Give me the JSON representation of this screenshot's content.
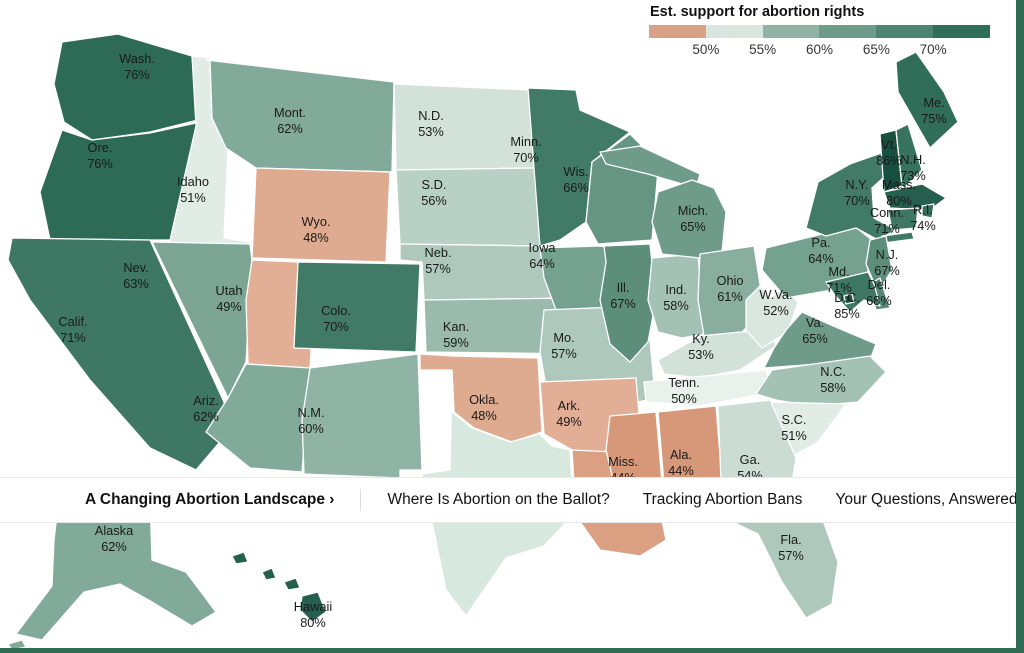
{
  "legend": {
    "title": "Est. support for abortion rights",
    "ticks": [
      "50%",
      "55%",
      "60%",
      "65%",
      "70%"
    ],
    "swatches": [
      "#d9a286",
      "#d9e6df",
      "#8fb3a4",
      "#6f9c8a",
      "#4e8471",
      "#2f6e59"
    ]
  },
  "nav": {
    "items": [
      {
        "label": "A Changing Abortion Landscape ›",
        "active": true
      },
      {
        "label": "Where Is Abortion on the Ballot?",
        "active": false
      },
      {
        "label": "Tracking Abortion Bans",
        "active": false
      },
      {
        "label": "Your Questions, Answered",
        "active": false
      }
    ]
  },
  "decor": {
    "accent_strip_color": "#306b56"
  },
  "chart_data": {
    "type": "choropleth_map",
    "region": "United States",
    "title": "Est. support for abortion rights",
    "unit": "%",
    "legend_range": [
      50,
      70
    ],
    "states": [
      {
        "id": "WA",
        "name": "Wash.",
        "value": 76,
        "fill": "#2d6b57"
      },
      {
        "id": "OR",
        "name": "Ore.",
        "value": 76,
        "fill": "#2d6b57"
      },
      {
        "id": "ID",
        "name": "Idaho",
        "value": 51,
        "fill": "#e1ece6"
      },
      {
        "id": "MT",
        "name": "Mont.",
        "value": 62,
        "fill": "#82aa9a"
      },
      {
        "id": "WY",
        "name": "Wyo.",
        "value": 48,
        "fill": "#dfab90"
      },
      {
        "id": "ND",
        "name": "N.D.",
        "value": 53,
        "fill": "#d2e2d9"
      },
      {
        "id": "SD",
        "name": "S.D.",
        "value": 56,
        "fill": "#b9d1c4"
      },
      {
        "id": "NE",
        "name": "Neb.",
        "value": 57,
        "fill": "#aec9bc"
      },
      {
        "id": "KS",
        "name": "Kan.",
        "value": 59,
        "fill": "#99baac"
      },
      {
        "id": "OK",
        "name": "Okla.",
        "value": 48,
        "fill": "#dfab90"
      },
      {
        "id": "TX",
        "name": "",
        "value": null,
        "fill": "#d7e8de"
      },
      {
        "id": "LA",
        "name": "",
        "value": null,
        "fill": "#dba082"
      },
      {
        "id": "CA",
        "name": "Calif.",
        "value": 71,
        "fill": "#3e7864"
      },
      {
        "id": "NV",
        "name": "Nev.",
        "value": 63,
        "fill": "#7ca594"
      },
      {
        "id": "UT",
        "name": "Utah",
        "value": 49,
        "fill": "#e2af96"
      },
      {
        "id": "CO",
        "name": "Colo.",
        "value": 70,
        "fill": "#417a66"
      },
      {
        "id": "AZ",
        "name": "Ariz.",
        "value": 62,
        "fill": "#82aa9a"
      },
      {
        "id": "NM",
        "name": "N.M.",
        "value": 60,
        "fill": "#8fb3a4"
      },
      {
        "id": "MN",
        "name": "Minn.",
        "value": 70,
        "fill": "#417a66"
      },
      {
        "id": "WI",
        "name": "Wis.",
        "value": 66,
        "fill": "#669583"
      },
      {
        "id": "IA",
        "name": "Iowa",
        "value": 64,
        "fill": "#75a18f"
      },
      {
        "id": "MO",
        "name": "Mo.",
        "value": 57,
        "fill": "#aec9bc"
      },
      {
        "id": "AR",
        "name": "Ark.",
        "value": 49,
        "fill": "#e2af96"
      },
      {
        "id": "MS",
        "name": "Miss.",
        "value": 44,
        "fill": "#d69878"
      },
      {
        "id": "AL",
        "name": "Ala.",
        "value": 44,
        "fill": "#d69878"
      },
      {
        "id": "IL",
        "name": "Ill.",
        "value": 67,
        "fill": "#5d8e7c"
      },
      {
        "id": "IN",
        "name": "Ind.",
        "value": 58,
        "fill": "#a4c2b4"
      },
      {
        "id": "MI",
        "name": "Mich.",
        "value": 65,
        "fill": "#6f9c8a"
      },
      {
        "id": "OH",
        "name": "Ohio",
        "value": 61,
        "fill": "#89ae9f"
      },
      {
        "id": "KY",
        "name": "Ky.",
        "value": 53,
        "fill": "#d2e2d9"
      },
      {
        "id": "TN",
        "name": "Tenn.",
        "value": 50,
        "fill": "#e9f1ec"
      },
      {
        "id": "WV",
        "name": "W.Va.",
        "value": 52,
        "fill": "#dae7df"
      },
      {
        "id": "VA",
        "name": "Va.",
        "value": 65,
        "fill": "#6f9c8a"
      },
      {
        "id": "NC",
        "name": "N.C.",
        "value": 58,
        "fill": "#a4c2b4"
      },
      {
        "id": "SC",
        "name": "S.C.",
        "value": 51,
        "fill": "#e1ece6"
      },
      {
        "id": "GA",
        "name": "Ga.",
        "value": 54,
        "fill": "#cbddd2"
      },
      {
        "id": "FL",
        "name": "Fla.",
        "value": 57,
        "fill": "#aec9bc"
      },
      {
        "id": "PA",
        "name": "Pa.",
        "value": 64,
        "fill": "#75a18f"
      },
      {
        "id": "NY",
        "name": "N.Y.",
        "value": 70,
        "fill": "#417a66"
      },
      {
        "id": "NJ",
        "name": "N.J.",
        "value": 67,
        "fill": "#5d8e7c"
      },
      {
        "id": "DE",
        "name": "Del.",
        "value": 68,
        "fill": "#538874"
      },
      {
        "id": "MD",
        "name": "Md.",
        "value": 71,
        "fill": "#3e7864"
      },
      {
        "id": "DC",
        "name": "D.C.",
        "value": 85,
        "fill": "#195341"
      },
      {
        "id": "ME",
        "name": "Me.",
        "value": 75,
        "fill": "#306e5a"
      },
      {
        "id": "VT",
        "name": "Vt.",
        "value": 86,
        "fill": "#17503e"
      },
      {
        "id": "NH",
        "name": "N.H.",
        "value": 73,
        "fill": "#37735f"
      },
      {
        "id": "MA",
        "name": "Mass.",
        "value": 80,
        "fill": "#24604d"
      },
      {
        "id": "RI",
        "name": "R.I.",
        "value": 74,
        "fill": "#34705c"
      },
      {
        "id": "CT",
        "name": "Conn.",
        "value": 71,
        "fill": "#3e7864"
      },
      {
        "id": "AK",
        "name": "Alaska",
        "value": 62,
        "fill": "#82aa9a"
      },
      {
        "id": "HI",
        "name": "Hawaii",
        "value": 80,
        "fill": "#24604d"
      }
    ]
  }
}
